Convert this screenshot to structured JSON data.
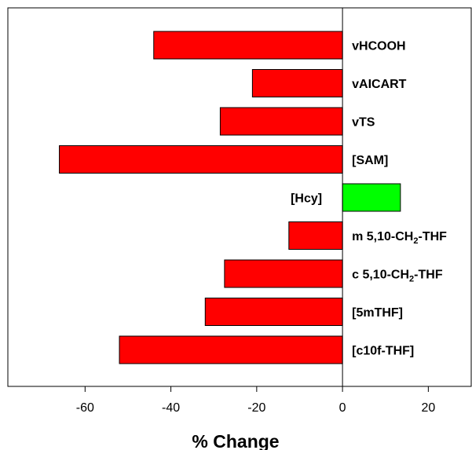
{
  "chart_data": {
    "type": "bar",
    "orientation": "horizontal",
    "title": "",
    "xlabel": "% Change",
    "ylabel": "",
    "xlim": [
      -78,
      30
    ],
    "xticks": [
      -60,
      -40,
      -20,
      0,
      20
    ],
    "grid": false,
    "legend": "none",
    "categories": [
      "vHCOOH",
      "vAICART",
      "vTS",
      "[SAM]",
      "[Hcy]",
      "m 5,10-CH2-THF",
      "c 5,10-CH2-THF",
      "[5mTHF]",
      "[c10f-THF]"
    ],
    "values": [
      -44,
      -21,
      -28.5,
      -66,
      13.5,
      -12.5,
      -27.5,
      -32,
      -52
    ],
    "colors": {
      "negative": "#ff0000",
      "positive": "#00ff00",
      "edge": "#000000"
    }
  }
}
